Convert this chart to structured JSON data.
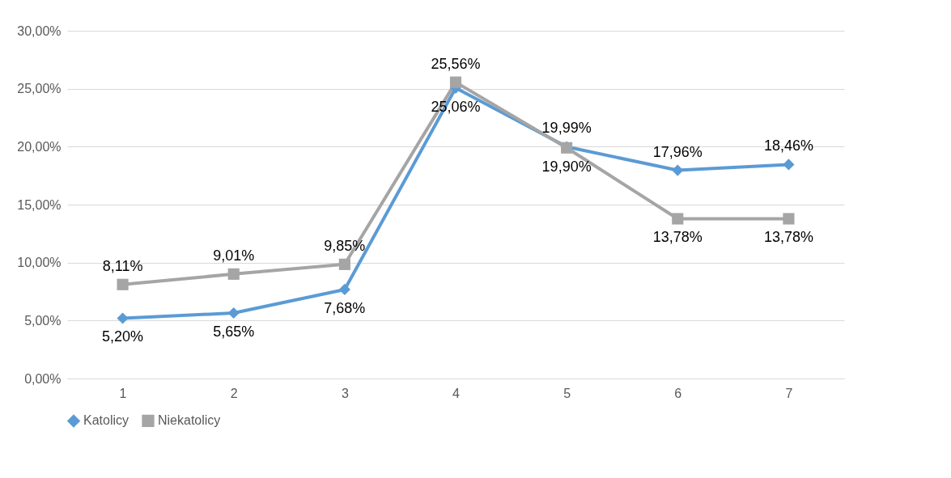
{
  "chart_data": {
    "type": "line",
    "categories": [
      "1",
      "2",
      "3",
      "4",
      "5",
      "6",
      "7"
    ],
    "series": [
      {
        "name": "Katolicy",
        "color": "#5b9bd5",
        "marker": "diamond",
        "values": [
          5.2,
          5.65,
          7.68,
          25.06,
          19.99,
          17.96,
          18.46
        ],
        "value_labels": [
          "5,20%",
          "5,65%",
          "7,68%",
          "25,06%",
          "19,99%",
          "17,96%",
          "18,46%"
        ]
      },
      {
        "name": "Niekatolicy",
        "color": "#a5a5a5",
        "marker": "square",
        "values": [
          8.11,
          9.01,
          9.85,
          25.56,
          19.9,
          13.78,
          13.78
        ],
        "value_labels": [
          "8,11%",
          "9,01%",
          "9,85%",
          "25,56%",
          "19,90%",
          "13,78%",
          "13,78%"
        ]
      }
    ],
    "ylim": [
      0,
      30
    ],
    "yticks": [
      {
        "value": 0,
        "label": "0,00%"
      },
      {
        "value": 5,
        "label": "5,00%"
      },
      {
        "value": 10,
        "label": "10,00%"
      },
      {
        "value": 15,
        "label": "15,00%"
      },
      {
        "value": 20,
        "label": "20,00%"
      },
      {
        "value": 25,
        "label": "25,00%"
      },
      {
        "value": 30,
        "label": "30,00%"
      }
    ],
    "grid": "y",
    "legend": "bottom",
    "line_style": "solid"
  }
}
